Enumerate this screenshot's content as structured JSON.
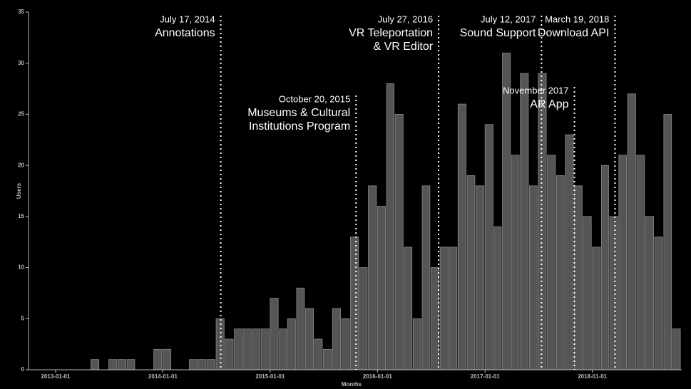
{
  "chart_data": {
    "type": "bar",
    "x_label": "Months",
    "y_label": "Users",
    "x": [
      "2013-01-01",
      "2013-02-01",
      "2013-03-01",
      "2013-04-01",
      "2013-05-01",
      "2013-06-01",
      "2013-07-01",
      "2013-08-01",
      "2013-09-01",
      "2013-10-01",
      "2013-11-01",
      "2013-12-01",
      "2014-01-01",
      "2014-02-01",
      "2014-03-01",
      "2014-04-01",
      "2014-05-01",
      "2014-06-01",
      "2014-07-01",
      "2014-08-01",
      "2014-09-01",
      "2014-10-01",
      "2014-11-01",
      "2014-12-01",
      "2015-01-01",
      "2015-02-01",
      "2015-03-01",
      "2015-04-01",
      "2015-05-01",
      "2015-06-01",
      "2015-07-01",
      "2015-08-01",
      "2015-09-01",
      "2015-10-01",
      "2015-11-01",
      "2015-12-01",
      "2016-01-01",
      "2016-02-01",
      "2016-03-01",
      "2016-04-01",
      "2016-05-01",
      "2016-06-01",
      "2016-07-01",
      "2016-08-01",
      "2016-09-01",
      "2016-10-01",
      "2016-11-01",
      "2016-12-01",
      "2017-01-01",
      "2017-02-01",
      "2017-03-01",
      "2017-04-01",
      "2017-05-01",
      "2017-06-01",
      "2017-07-01",
      "2017-08-01",
      "2017-09-01",
      "2017-10-01",
      "2017-11-01",
      "2017-12-01",
      "2018-01-01",
      "2018-02-01",
      "2018-03-01",
      "2018-04-01",
      "2018-05-01",
      "2018-06-01",
      "2018-07-01",
      "2018-08-01",
      "2018-09-01",
      "2018-10-01"
    ],
    "values": [
      0,
      0,
      0,
      0,
      1,
      0,
      1,
      1,
      1,
      0,
      0,
      2,
      2,
      0,
      0,
      1,
      1,
      1,
      5,
      3,
      4,
      4,
      4,
      4,
      7,
      4,
      5,
      8,
      6,
      3,
      2,
      6,
      5,
      13,
      10,
      18,
      16,
      28,
      25,
      12,
      5,
      18,
      10,
      12,
      12,
      26,
      19,
      18,
      24,
      14,
      31,
      21,
      29,
      18,
      29,
      21,
      19,
      23,
      18,
      15,
      12,
      20,
      15,
      21,
      27,
      21,
      15,
      13,
      25,
      4
    ],
    "color": "#555555",
    "xlim": [
      "2012-10-01",
      "2018-11-01"
    ],
    "xticks": [
      "2013-01-01",
      "2014-01-01",
      "2015-01-01",
      "2016-01-01",
      "2017-01-01",
      "2018-01-01"
    ],
    "ylim": [
      0,
      35
    ],
    "yticks": [
      0,
      5,
      10,
      15,
      20,
      25,
      30,
      35
    ],
    "annotations": [
      {
        "x": "2014-07-17",
        "date": "July 17, 2014",
        "text": [
          "Annotations"
        ]
      },
      {
        "x": "2015-10-20",
        "date": "October 20, 2015",
        "text": [
          "Museums & Cultural",
          "Institutions Program"
        ]
      },
      {
        "x": "2016-07-27",
        "date": "July 27, 2016",
        "text": [
          "VR Teleportation",
          "& VR Editor"
        ]
      },
      {
        "x": "2017-07-12",
        "date": "July 12, 2017",
        "text": [
          "Sound Support"
        ]
      },
      {
        "x": "2017-11",
        "date": "November 2017",
        "text": [
          "AR App"
        ]
      },
      {
        "x": "2018-03-19",
        "date": "March 19, 2018",
        "text": [
          "Download API"
        ]
      }
    ]
  }
}
